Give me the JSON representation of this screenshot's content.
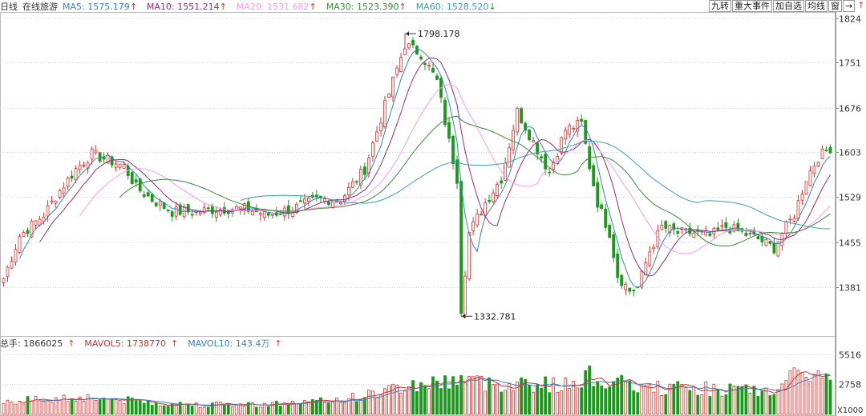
{
  "header": {
    "period": "日线",
    "stock_name": "在线旅游",
    "ma": [
      {
        "label": "MA5: 1575.179",
        "arrow": "↑",
        "color": "#3a7fbf"
      },
      {
        "label": "MA10: 1551.214",
        "arrow": "↑",
        "color": "#8e2f7c"
      },
      {
        "label": "MA20: 1531.682",
        "arrow": "↑",
        "color": "#f29ee8"
      },
      {
        "label": "MA30: 1523.390",
        "arrow": "↑",
        "color": "#3a8a3a"
      },
      {
        "label": "MA60: 1528.520",
        "arrow": "↓",
        "color": "#3a9fb0"
      }
    ]
  },
  "toolbar": {
    "buttons": [
      "九转",
      "重大事件",
      "加自选",
      "均线",
      "窗"
    ],
    "right_arrow": "→",
    "up_arrow": "↑"
  },
  "volume_header": {
    "label": "总手: 1866025",
    "mavol5": "MAVOL5: 1738770",
    "mavol10": "MAVOL10: 143.4万",
    "arrow_up": "↑"
  },
  "chart_data": {
    "type": "candlestick",
    "price_axis": {
      "ticks": [
        1824,
        1751,
        1676,
        1603,
        1529,
        1455,
        1381
      ],
      "range": [
        1320,
        1830
      ]
    },
    "volume_axis": {
      "ticks": [
        5516,
        2758
      ],
      "unit_label": "X1000",
      "range": [
        0,
        6000
      ]
    },
    "annotations": [
      {
        "text": "1798.178",
        "value": 1798.178,
        "index": 100
      },
      {
        "text": "1332.781",
        "value": 1332.781,
        "index": 114
      }
    ],
    "colors": {
      "up": "#e0302a",
      "down": "#1a9a1a",
      "grid": "#d0d0d0"
    },
    "close_anchors": [
      [
        0,
        1395
      ],
      [
        4,
        1465
      ],
      [
        10,
        1500
      ],
      [
        14,
        1540
      ],
      [
        18,
        1575
      ],
      [
        22,
        1600
      ],
      [
        26,
        1590
      ],
      [
        30,
        1580
      ],
      [
        33,
        1545
      ],
      [
        37,
        1525
      ],
      [
        42,
        1505
      ],
      [
        48,
        1505
      ],
      [
        54,
        1510
      ],
      [
        60,
        1510
      ],
      [
        66,
        1500
      ],
      [
        72,
        1510
      ],
      [
        78,
        1525
      ],
      [
        84,
        1525
      ],
      [
        90,
        1575
      ],
      [
        96,
        1700
      ],
      [
        100,
        1780
      ],
      [
        104,
        1765
      ],
      [
        108,
        1720
      ],
      [
        111,
        1620
      ],
      [
        113,
        1560
      ],
      [
        114,
        1345
      ],
      [
        116,
        1470
      ],
      [
        120,
        1520
      ],
      [
        124,
        1560
      ],
      [
        128,
        1670
      ],
      [
        132,
        1620
      ],
      [
        136,
        1570
      ],
      [
        140,
        1640
      ],
      [
        144,
        1650
      ],
      [
        146,
        1580
      ],
      [
        148,
        1520
      ],
      [
        151,
        1470
      ],
      [
        153,
        1400
      ],
      [
        156,
        1375
      ],
      [
        158,
        1380
      ],
      [
        161,
        1440
      ],
      [
        164,
        1480
      ],
      [
        168,
        1470
      ],
      [
        172,
        1470
      ],
      [
        176,
        1465
      ],
      [
        180,
        1480
      ],
      [
        184,
        1470
      ],
      [
        188,
        1460
      ],
      [
        192,
        1445
      ],
      [
        194,
        1470
      ],
      [
        197,
        1500
      ],
      [
        200,
        1560
      ],
      [
        203,
        1595
      ],
      [
        206,
        1610
      ]
    ],
    "volume_anchors": [
      [
        0,
        1200
      ],
      [
        10,
        1400
      ],
      [
        20,
        1600
      ],
      [
        30,
        1300
      ],
      [
        40,
        1000
      ],
      [
        50,
        900
      ],
      [
        60,
        900
      ],
      [
        70,
        1000
      ],
      [
        80,
        1200
      ],
      [
        90,
        1700
      ],
      [
        100,
        2600
      ],
      [
        110,
        3000
      ],
      [
        114,
        3400
      ],
      [
        120,
        2800
      ],
      [
        130,
        2900
      ],
      [
        140,
        2600
      ],
      [
        145,
        3600
      ],
      [
        150,
        3000
      ],
      [
        160,
        2400
      ],
      [
        170,
        2400
      ],
      [
        180,
        2300
      ],
      [
        190,
        2000
      ],
      [
        197,
        3300
      ],
      [
        200,
        4200
      ],
      [
        203,
        3400
      ],
      [
        206,
        3200
      ]
    ],
    "ma_windows": [
      5,
      10,
      20,
      30,
      60
    ]
  }
}
